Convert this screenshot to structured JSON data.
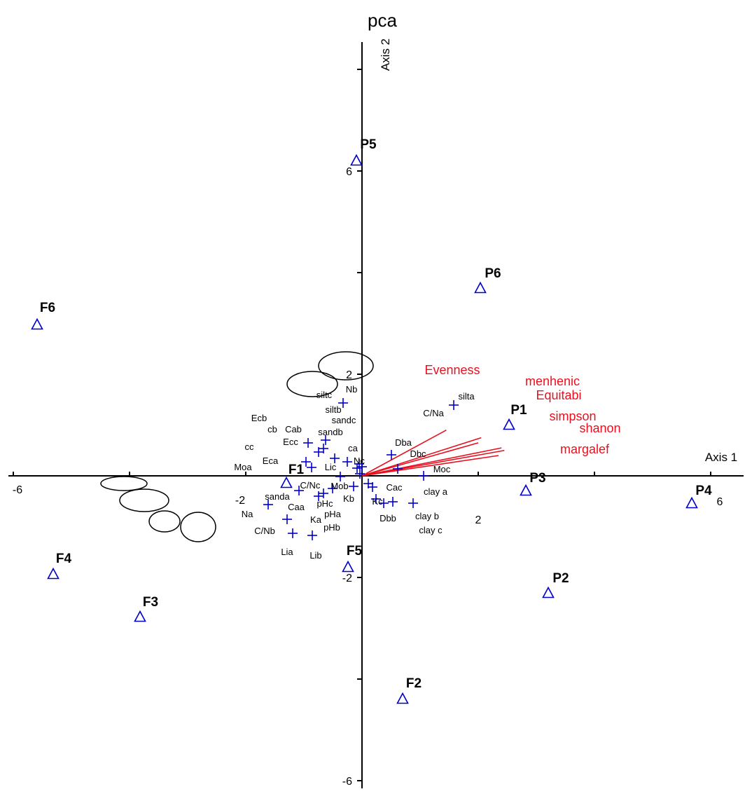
{
  "chart_data": {
    "type": "scatter",
    "title": "pca",
    "xlabel": "Axis 1",
    "ylabel": "Axis 2",
    "xlim": [
      -6.2,
      6.3
    ],
    "ylim": [
      -6.1,
      8.4
    ],
    "x_ticks": [
      -6,
      -4,
      -2,
      0,
      2,
      4,
      6
    ],
    "y_ticks": [
      -6,
      -4,
      -2,
      0,
      2,
      4,
      6,
      8
    ],
    "x_tick_labels": [
      {
        "value": -6,
        "label": "-6"
      },
      {
        "value": -2,
        "label": "-2"
      },
      {
        "value": 2,
        "label": "2"
      },
      {
        "value": 6,
        "label": "6"
      }
    ],
    "y_tick_labels": [
      {
        "value": 6,
        "label": "6"
      },
      {
        "value": 2,
        "label": "2"
      },
      {
        "value": -2,
        "label": "-2"
      },
      {
        "value": -6,
        "label": "-6"
      }
    ],
    "grid": false,
    "colors": {
      "sites": "#0000cc",
      "variables": "#0000cc",
      "vectors": "#e8101e",
      "text": "#000000"
    },
    "sites": [
      {
        "name": "P5",
        "x": -0.1,
        "y": 6.15
      },
      {
        "name": "P6",
        "x": 2.0,
        "y": 3.6
      },
      {
        "name": "F6",
        "x": -5.8,
        "y": 2.95
      },
      {
        "name": "P1",
        "x": 2.5,
        "y": 0.95
      },
      {
        "name": "F1",
        "x": -1.35,
        "y": -0.15
      },
      {
        "name": "P3",
        "x": 2.8,
        "y": -0.3
      },
      {
        "name": "P4",
        "x": 5.8,
        "y": -0.55
      },
      {
        "name": "F5",
        "x": -0.25,
        "y": -1.8
      },
      {
        "name": "P2",
        "x": 3.2,
        "y": -2.3
      },
      {
        "name": "F4",
        "x": -5.5,
        "y": -1.95
      },
      {
        "name": "F3",
        "x": -4.0,
        "y": -2.8
      },
      {
        "name": "F2",
        "x": 0.7,
        "y": -4.5
      }
    ],
    "variables": [
      {
        "name": "silta",
        "x": 1.6,
        "y": 1.35
      },
      {
        "name": "C/Na",
        "x": 1.6,
        "y": 1.35
      },
      {
        "name": "Nb",
        "x": -0.35,
        "y": 1.4
      },
      {
        "name": "siltc",
        "x": -0.35,
        "y": 1.4
      },
      {
        "name": "siltb",
        "x": -0.35,
        "y": 1.4
      },
      {
        "name": "sandc",
        "x": -0.65,
        "y": 0.65
      },
      {
        "name": "sandb",
        "x": -0.65,
        "y": 0.65
      },
      {
        "name": "Ecb",
        "x": -0.75,
        "y": 0.45
      },
      {
        "name": "cb",
        "x": -1.0,
        "y": 0.5
      },
      {
        "name": "Cab",
        "x": -0.75,
        "y": 0.45
      },
      {
        "name": "Ecc",
        "x": -1.0,
        "y": 0.5
      },
      {
        "name": "cc",
        "x": -0.45,
        "y": 0.3
      },
      {
        "name": "ca",
        "x": -0.3,
        "y": 0.2
      },
      {
        "name": "Eca",
        "x": -1.05,
        "y": 0.15
      },
      {
        "name": "Moa",
        "x": -0.95,
        "y": 0.1
      },
      {
        "name": "Lic",
        "x": -0.4,
        "y": 0.05
      },
      {
        "name": "Nc",
        "x": 0.0,
        "y": 0.15
      },
      {
        "name": "Dba",
        "x": 0.5,
        "y": 0.35
      },
      {
        "name": "Dbc",
        "x": 0.6,
        "y": 0.1
      },
      {
        "name": "Moc",
        "x": 1.05,
        "y": 0.0
      },
      {
        "name": "C/Nc",
        "x": -1.2,
        "y": -0.35
      },
      {
        "name": "Mob",
        "x": -0.15,
        "y": -0.3
      },
      {
        "name": "sanda",
        "x": -1.7,
        "y": -0.6
      },
      {
        "name": "pHc",
        "x": -0.75,
        "y": -0.35
      },
      {
        "name": "Kb",
        "x": -0.2,
        "y": -0.4
      },
      {
        "name": "Cac",
        "x": 0.2,
        "y": -0.25
      },
      {
        "name": "Caa",
        "x": -0.75,
        "y": -0.35
      },
      {
        "name": "pHa",
        "x": -0.6,
        "y": -0.35
      },
      {
        "name": "Kc",
        "x": 0.2,
        "y": -0.4
      },
      {
        "name": "clay a",
        "x": 0.85,
        "y": -0.55
      },
      {
        "name": "Na",
        "x": -1.35,
        "y": -0.85
      },
      {
        "name": "Ka",
        "x": -1.3,
        "y": -1.1
      },
      {
        "name": "pHb",
        "x": -1.0,
        "y": -1.15
      },
      {
        "name": "Dbb",
        "x": 0.4,
        "y": -0.55
      },
      {
        "name": "clay b",
        "x": 0.5,
        "y": -0.55
      },
      {
        "name": "clay c",
        "x": 0.5,
        "y": -0.55
      },
      {
        "name": "C/Nb",
        "x": -1.35,
        "y": -0.85
      },
      {
        "name": "Lia",
        "x": -1.3,
        "y": -1.1
      },
      {
        "name": "Lib",
        "x": -1.0,
        "y": -1.15
      }
    ],
    "vectors": [
      {
        "name": "Evenness",
        "x": 1.45,
        "y": 0.9
      },
      {
        "name": "menhenic",
        "x": 2.05,
        "y": 0.75
      },
      {
        "name": "Equitabi",
        "x": 2.0,
        "y": 0.65
      },
      {
        "name": "simpson",
        "x": 2.4,
        "y": 0.55
      },
      {
        "name": "shanon",
        "x": 2.45,
        "y": 0.5
      },
      {
        "name": "margalef",
        "x": 2.35,
        "y": 0.4
      }
    ]
  }
}
